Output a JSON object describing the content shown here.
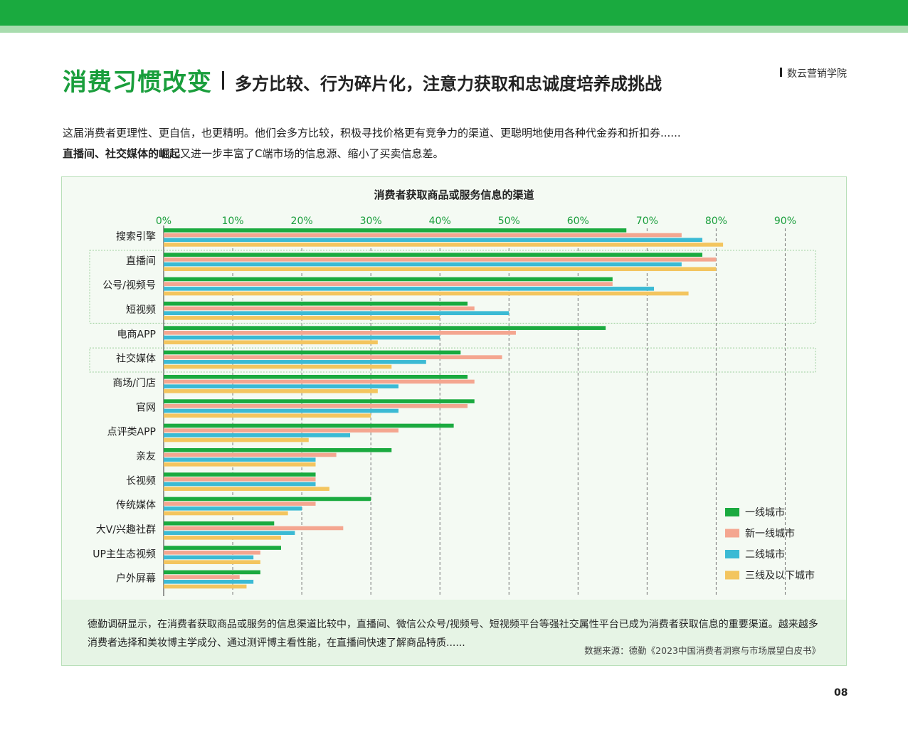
{
  "header": {
    "title_main": "消费习惯改变",
    "title_sub": "多方比较、行为碎片化，注意力获取和忠诚度培养成挑战",
    "brand": "数云营销学院"
  },
  "intro": {
    "line1": "这届消费者更理性、更自信，也更精明。他们会多方比较，积极寻找价格更有竞争力的渠道、更聪明地使用各种代金券和折扣券......",
    "line2_bold": "直播间、社交媒体的崛起",
    "line2_rest": "又进一步丰富了C端市场的信息源、缩小了买卖信息差。"
  },
  "chart_data": {
    "type": "bar",
    "orientation": "horizontal",
    "title": "消费者获取商品或服务信息的渠道",
    "x_ticks": [
      "0%",
      "10%",
      "20%",
      "30%",
      "40%",
      "50%",
      "60%",
      "70%",
      "80%",
      "90%"
    ],
    "xlim": [
      0,
      90
    ],
    "grid": true,
    "legend_position": "bottom-right",
    "categories": [
      "搜索引擎",
      "直播间",
      "公号/视频号",
      "短视频",
      "电商APP",
      "社交媒体",
      "商场/门店",
      "官网",
      "点评类APP",
      "亲友",
      "长视频",
      "传统媒体",
      "大V/兴趣社群",
      "UP主生态视频",
      "户外屏幕"
    ],
    "series": [
      {
        "name": "一线城市",
        "color": "#1aaa3f",
        "values": [
          67,
          78,
          65,
          44,
          64,
          43,
          44,
          45,
          42,
          33,
          22,
          30,
          16,
          17,
          14
        ]
      },
      {
        "name": "新一线城市",
        "color": "#f4a690",
        "values": [
          75,
          80,
          65,
          45,
          51,
          49,
          45,
          44,
          34,
          25,
          22,
          22,
          26,
          14,
          11
        ]
      },
      {
        "name": "二线城市",
        "color": "#3bbad4",
        "values": [
          78,
          75,
          71,
          50,
          40,
          38,
          34,
          34,
          27,
          22,
          22,
          20,
          19,
          13,
          13
        ]
      },
      {
        "name": "三线及以下城市",
        "color": "#f3c55f",
        "values": [
          81,
          80,
          76,
          40,
          31,
          33,
          31,
          30,
          21,
          22,
          24,
          18,
          17,
          14,
          12
        ]
      }
    ],
    "highlight_groups": [
      [
        "直播间",
        "公号/视频号",
        "短视频"
      ],
      [
        "社交媒体"
      ]
    ]
  },
  "note": {
    "text": "德勤调研显示，在消费者获取商品或服务的信息渠道比较中，直播间、微信公众号/视频号、短视频平台等强社交属性平台已成为消费者获取信息的重要渠道。越来越多消费者选择和美妆博主学成分、通过测评博主看性能，在直播间快速了解商品特质......",
    "source": "数据来源：德勤《2023中国消费者洞察与市场展望白皮书》"
  },
  "page_number": "08"
}
